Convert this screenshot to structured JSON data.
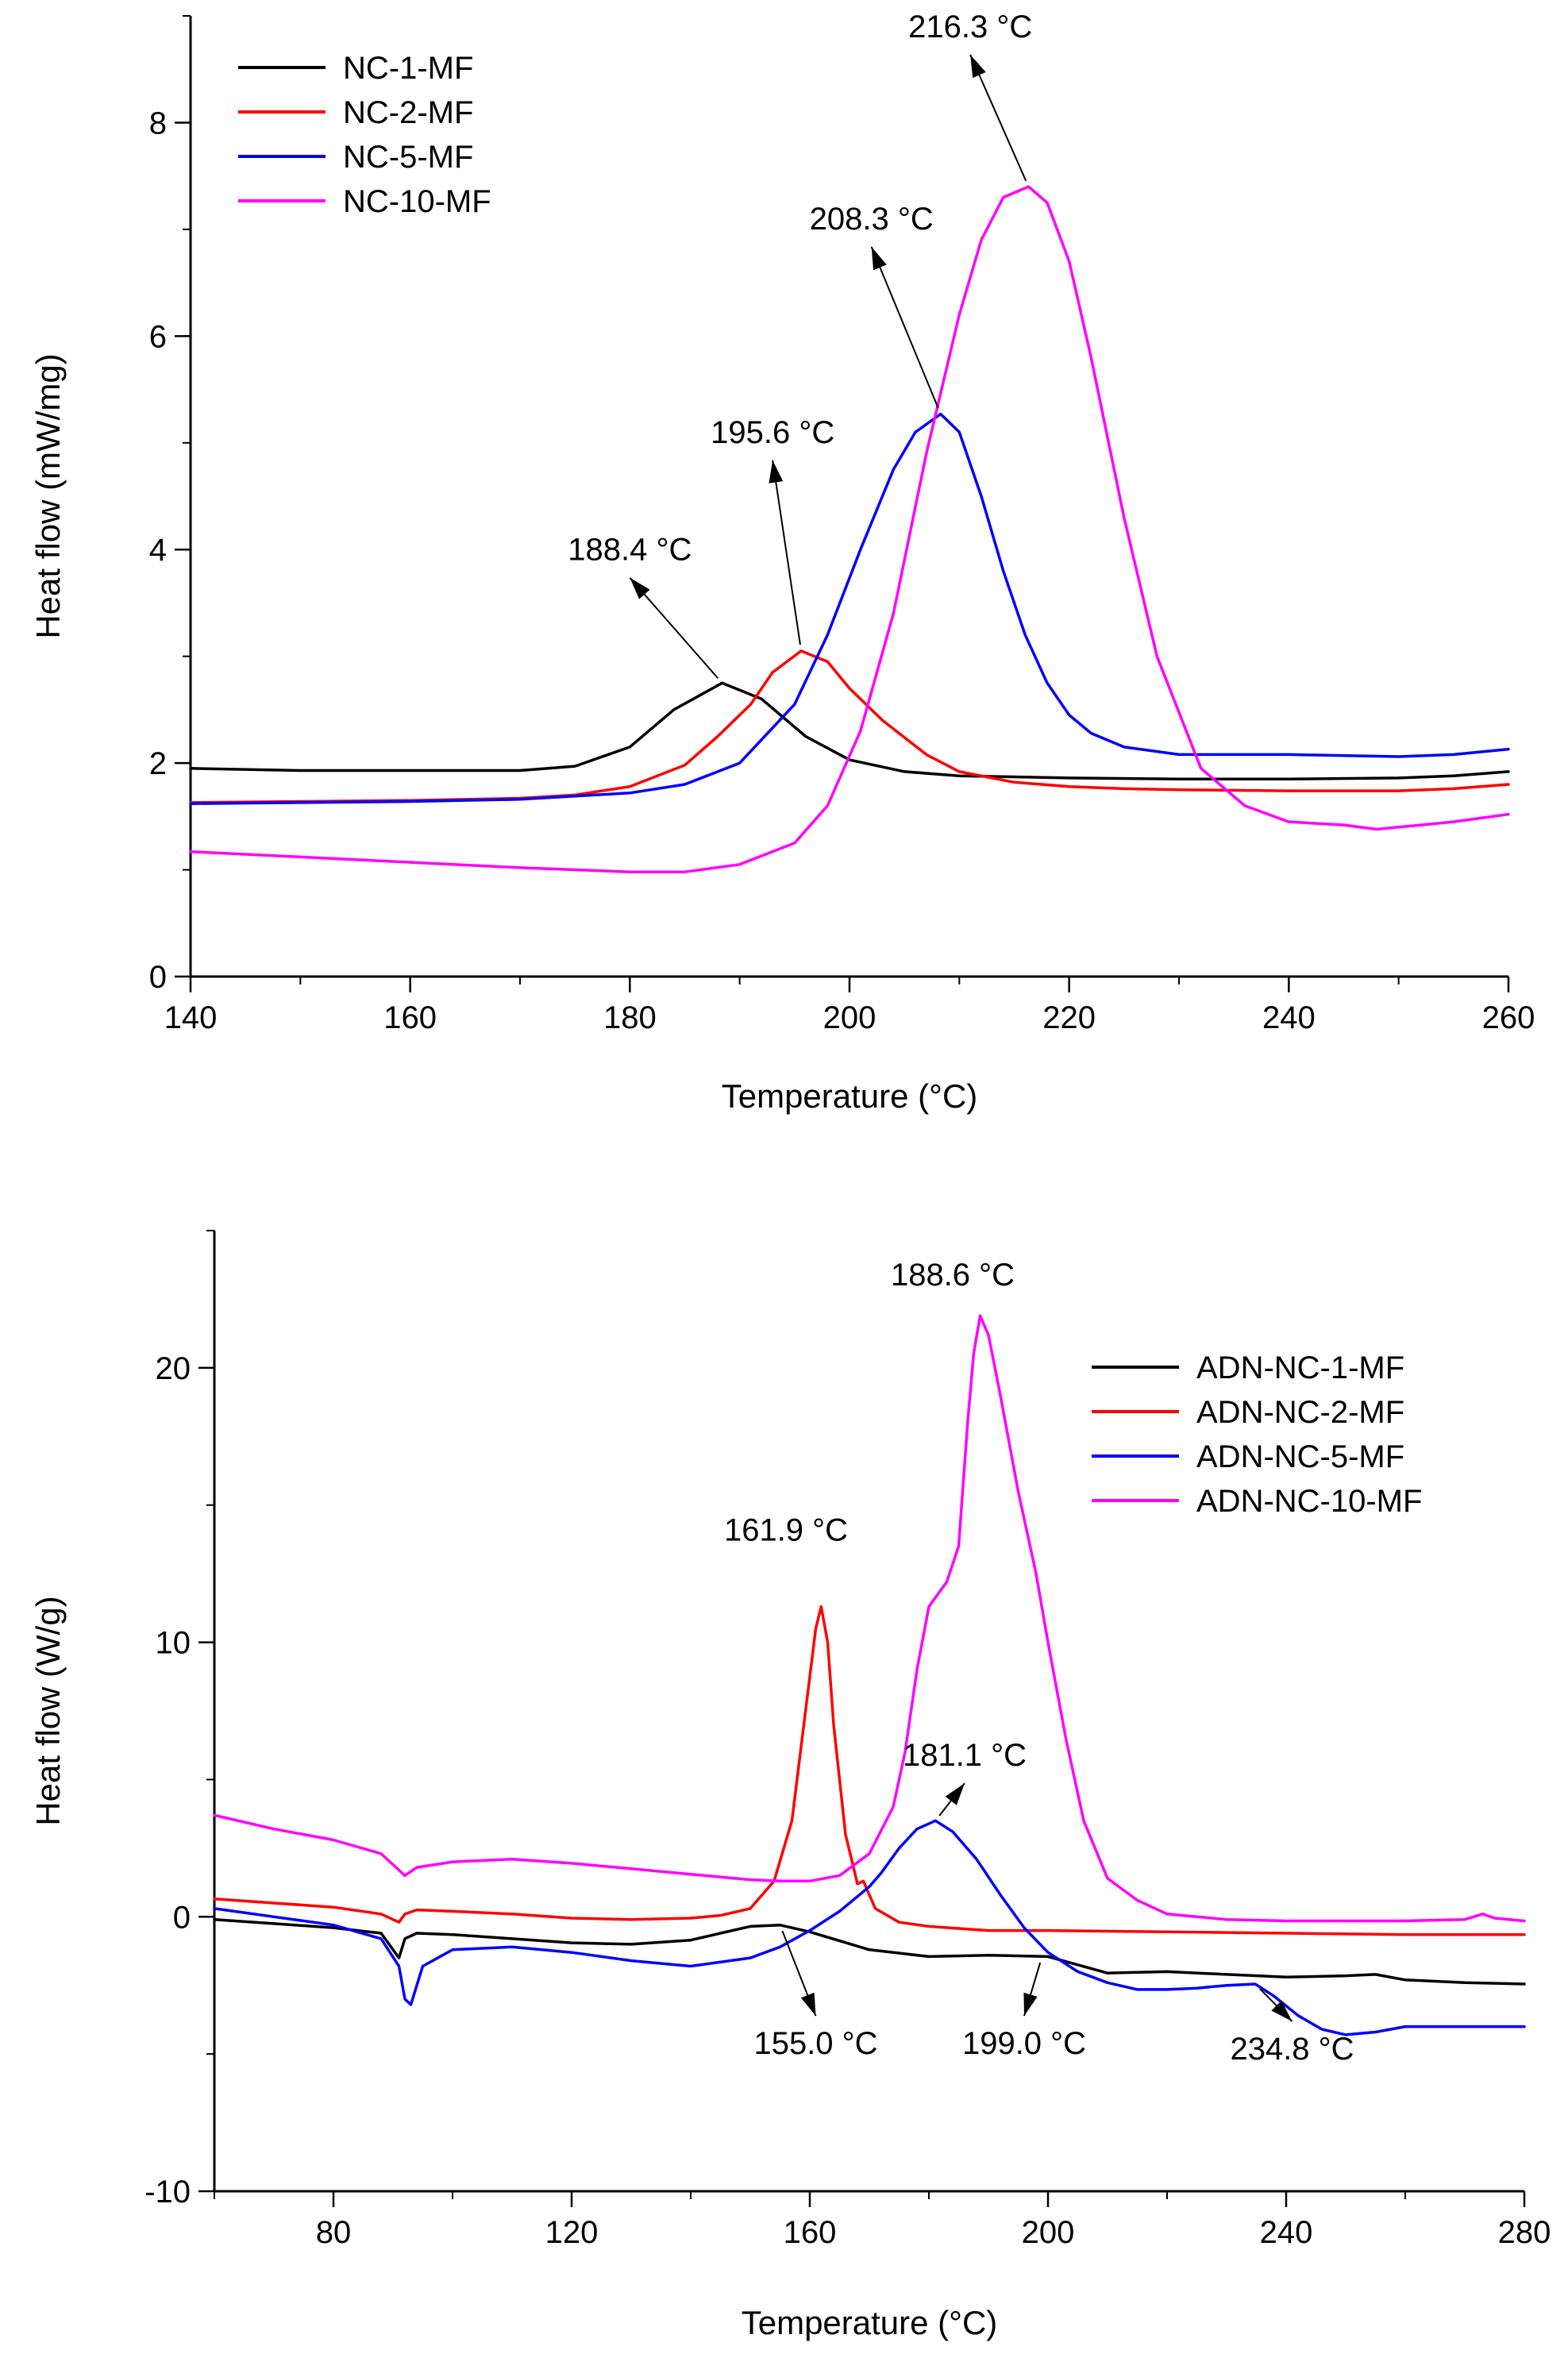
{
  "chart_data": [
    {
      "type": "line",
      "xlabel": "Temperature (°C)",
      "ylabel": "Heat flow (mW/mg)",
      "xlim": [
        140,
        260
      ],
      "ylim": [
        0,
        9
      ],
      "xticks": [
        140,
        160,
        180,
        200,
        220,
        240,
        260
      ],
      "yticks": [
        0,
        2,
        4,
        6,
        8
      ],
      "legend": "top-left",
      "grid": false,
      "series": [
        {
          "name": "NC-1-MF",
          "color": "#000000",
          "x": [
            140,
            150,
            160,
            170,
            175,
            180,
            184,
            188.4,
            192,
            196,
            200,
            205,
            210,
            220,
            230,
            240,
            250,
            255,
            260
          ],
          "y": [
            1.95,
            1.93,
            1.93,
            1.93,
            1.97,
            2.15,
            2.5,
            2.75,
            2.6,
            2.25,
            2.03,
            1.92,
            1.88,
            1.86,
            1.85,
            1.85,
            1.86,
            1.88,
            1.92
          ]
        },
        {
          "name": "NC-2-MF",
          "color": "#ff0000",
          "x": [
            140,
            150,
            160,
            170,
            175,
            180,
            185,
            188,
            191,
            193,
            195.6,
            198,
            200,
            203,
            207,
            210,
            215,
            220,
            225,
            230,
            240,
            250,
            255,
            260
          ],
          "y": [
            1.63,
            1.64,
            1.65,
            1.67,
            1.7,
            1.78,
            1.98,
            2.25,
            2.55,
            2.85,
            3.05,
            2.95,
            2.7,
            2.4,
            2.08,
            1.92,
            1.82,
            1.78,
            1.76,
            1.75,
            1.74,
            1.74,
            1.76,
            1.8
          ]
        },
        {
          "name": "NC-5-MF",
          "color": "#0000ff",
          "x": [
            140,
            150,
            160,
            170,
            180,
            185,
            190,
            195,
            198,
            201,
            204,
            206,
            208.3,
            210,
            212,
            214,
            216,
            218,
            220,
            222,
            225,
            230,
            240,
            250,
            255,
            260
          ],
          "y": [
            1.62,
            1.63,
            1.64,
            1.66,
            1.72,
            1.8,
            2.0,
            2.55,
            3.2,
            4.0,
            4.75,
            5.1,
            5.27,
            5.1,
            4.5,
            3.8,
            3.2,
            2.75,
            2.45,
            2.28,
            2.15,
            2.08,
            2.08,
            2.06,
            2.08,
            2.13
          ]
        },
        {
          "name": "NC-10-MF",
          "color": "#ff00ff",
          "x": [
            140,
            150,
            160,
            170,
            180,
            185,
            190,
            195,
            198,
            201,
            204,
            207,
            210,
            212,
            214,
            216.3,
            218,
            220,
            222,
            225,
            228,
            232,
            236,
            240,
            245,
            248,
            250,
            255,
            260
          ],
          "y": [
            1.17,
            1.12,
            1.07,
            1.02,
            0.98,
            0.98,
            1.05,
            1.25,
            1.6,
            2.3,
            3.4,
            4.9,
            6.2,
            6.9,
            7.3,
            7.4,
            7.25,
            6.7,
            5.8,
            4.3,
            3.0,
            1.95,
            1.6,
            1.45,
            1.42,
            1.38,
            1.4,
            1.45,
            1.52
          ]
        }
      ],
      "annotations": [
        {
          "text": "188.4 °C",
          "x": 188.4,
          "y": 2.75,
          "label_x": 180,
          "label_y": 3.9
        },
        {
          "text": "195.6 °C",
          "x": 195.6,
          "y": 3.05,
          "label_x": 193,
          "label_y": 5.0
        },
        {
          "text": "208.3 °C",
          "x": 208.3,
          "y": 5.27,
          "label_x": 202,
          "label_y": 7.0
        },
        {
          "text": "216.3 °C",
          "x": 216.3,
          "y": 7.4,
          "label_x": 211,
          "label_y": 8.8
        }
      ]
    },
    {
      "type": "line",
      "xlabel": "Temperature (°C)",
      "ylabel": "Heat flow (W/g)",
      "xlim": [
        60,
        280
      ],
      "ylim": [
        -10,
        25
      ],
      "xticks": [
        80,
        120,
        160,
        200,
        240,
        280
      ],
      "yticks": [
        -10,
        0,
        10,
        20
      ],
      "legend": "top-right",
      "grid": false,
      "series": [
        {
          "name": "ADN-NC-1-MF",
          "color": "#000000",
          "x": [
            60,
            70,
            80,
            88,
            91,
            92,
            94,
            100,
            110,
            120,
            130,
            140,
            145,
            150,
            155,
            160,
            170,
            180,
            190,
            200,
            205,
            210,
            220,
            230,
            240,
            250,
            255,
            260,
            270,
            280
          ],
          "y": [
            -0.1,
            -0.25,
            -0.4,
            -0.6,
            -1.5,
            -0.8,
            -0.6,
            -0.65,
            -0.8,
            -0.95,
            -1.0,
            -0.85,
            -0.6,
            -0.35,
            -0.3,
            -0.55,
            -1.2,
            -1.45,
            -1.4,
            -1.45,
            -1.75,
            -2.05,
            -2.0,
            -2.1,
            -2.2,
            -2.15,
            -2.1,
            -2.3,
            -2.4,
            -2.45
          ]
        },
        {
          "name": "ADN-NC-2-MF",
          "color": "#ff0000",
          "x": [
            60,
            70,
            80,
            88,
            91,
            92,
            94,
            100,
            110,
            120,
            130,
            140,
            145,
            150,
            154,
            157,
            159,
            161,
            161.9,
            163,
            164,
            166,
            168,
            169,
            171,
            175,
            180,
            190,
            200,
            220,
            240,
            260,
            280
          ],
          "y": [
            0.65,
            0.5,
            0.35,
            0.1,
            -0.2,
            0.1,
            0.25,
            0.2,
            0.1,
            -0.05,
            -0.1,
            -0.05,
            0.05,
            0.3,
            1.3,
            3.5,
            7.0,
            10.5,
            11.3,
            10.0,
            7.0,
            3.0,
            1.2,
            1.3,
            0.3,
            -0.2,
            -0.35,
            -0.5,
            -0.5,
            -0.55,
            -0.6,
            -0.65,
            -0.65
          ]
        },
        {
          "name": "ADN-NC-5-MF",
          "color": "#0000ff",
          "x": [
            60,
            70,
            80,
            88,
            91,
            92,
            93,
            95,
            100,
            110,
            120,
            130,
            140,
            150,
            155,
            160,
            165,
            170,
            172,
            175,
            178,
            181.1,
            184,
            188,
            192,
            196,
            200,
            205,
            210,
            215,
            220,
            225,
            230,
            234.8,
            238,
            242,
            246,
            250,
            255,
            260,
            270,
            280
          ],
          "y": [
            0.3,
            0.0,
            -0.3,
            -0.8,
            -1.8,
            -3.0,
            -3.2,
            -1.8,
            -1.2,
            -1.1,
            -1.3,
            -1.6,
            -1.8,
            -1.5,
            -1.1,
            -0.5,
            0.2,
            1.1,
            1.6,
            2.5,
            3.2,
            3.5,
            3.1,
            2.1,
            0.8,
            -0.4,
            -1.3,
            -2.0,
            -2.4,
            -2.65,
            -2.65,
            -2.6,
            -2.5,
            -2.45,
            -2.9,
            -3.6,
            -4.1,
            -4.3,
            -4.2,
            -4.0,
            -4.0,
            -4.0
          ]
        },
        {
          "name": "ADN-NC-10-MF",
          "color": "#ff00ff",
          "x": [
            60,
            70,
            80,
            88,
            91,
            92,
            94,
            100,
            110,
            120,
            130,
            140,
            150,
            155,
            160,
            165,
            170,
            174,
            176,
            178,
            180,
            183,
            185,
            186.5,
            187.5,
            188.6,
            190,
            192,
            195,
            198,
            200,
            203,
            206,
            210,
            215,
            220,
            230,
            240,
            250,
            260,
            270,
            273,
            275,
            280
          ],
          "y": [
            3.7,
            3.2,
            2.8,
            2.3,
            1.7,
            1.5,
            1.8,
            2.0,
            2.1,
            1.95,
            1.75,
            1.55,
            1.35,
            1.3,
            1.3,
            1.5,
            2.3,
            4.0,
            6.0,
            9.0,
            11.3,
            12.2,
            13.5,
            18.0,
            20.5,
            21.9,
            21.2,
            19.0,
            15.5,
            12.5,
            10.0,
            6.5,
            3.5,
            1.4,
            0.6,
            0.1,
            -0.1,
            -0.15,
            -0.15,
            -0.15,
            -0.1,
            0.1,
            -0.05,
            -0.15
          ]
        }
      ],
      "annotations": [
        {
          "text": "188.6 °C",
          "label_x": 184,
          "label_y": 23.0
        },
        {
          "text": "161.9 °C",
          "label_x": 156,
          "label_y": 13.7
        },
        {
          "text": "181.1 °C",
          "x": 181.1,
          "y": 3.5,
          "label_x": 186,
          "label_y": 5.5
        },
        {
          "text": "155.0 °C",
          "x": 155.0,
          "y": -0.3,
          "label_x": 161,
          "label_y": -5.0
        },
        {
          "text": "199.0 °C",
          "x": 199.0,
          "y": -1.45,
          "label_x": 196,
          "label_y": -5.0
        },
        {
          "text": "234.8 °C",
          "x": 234.8,
          "y": -2.45,
          "label_x": 241,
          "label_y": -5.2
        }
      ]
    }
  ]
}
